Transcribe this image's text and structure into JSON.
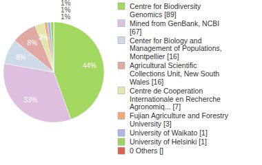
{
  "chart_data": {
    "type": "pie",
    "categories": [
      "Centre for Biodiversity Genomics [89]",
      "Mined from GenBank, NCBI [67]",
      "Center for Biology and Management of Populations, Montpellier [16]",
      "Agricultural Scientific Collections Unit, New South Wales [16]",
      "Centre de Cooperation Internationale en Recherche Agronomiq... [7]",
      "Fujian Agriculture and Forestry University [3]",
      "University of Waikato [1]",
      "University of Helsinki [1]",
      "0 Others []"
    ],
    "values": [
      44,
      33,
      8,
      8,
      3,
      1,
      1,
      1,
      0
    ],
    "value_labels": [
      "44%",
      "33%",
      "8%",
      "8%",
      "3%",
      "1%",
      "1%",
      "1%",
      null
    ],
    "colors": [
      "#a2d760",
      "#dfbfe0",
      "#cddbe8",
      "#e0aaa2",
      "#e2e6aa",
      "#f2a874",
      "#a9b7e6",
      "#9fd35f",
      "#e0604f"
    ],
    "data_labels": true,
    "legend": "right"
  }
}
